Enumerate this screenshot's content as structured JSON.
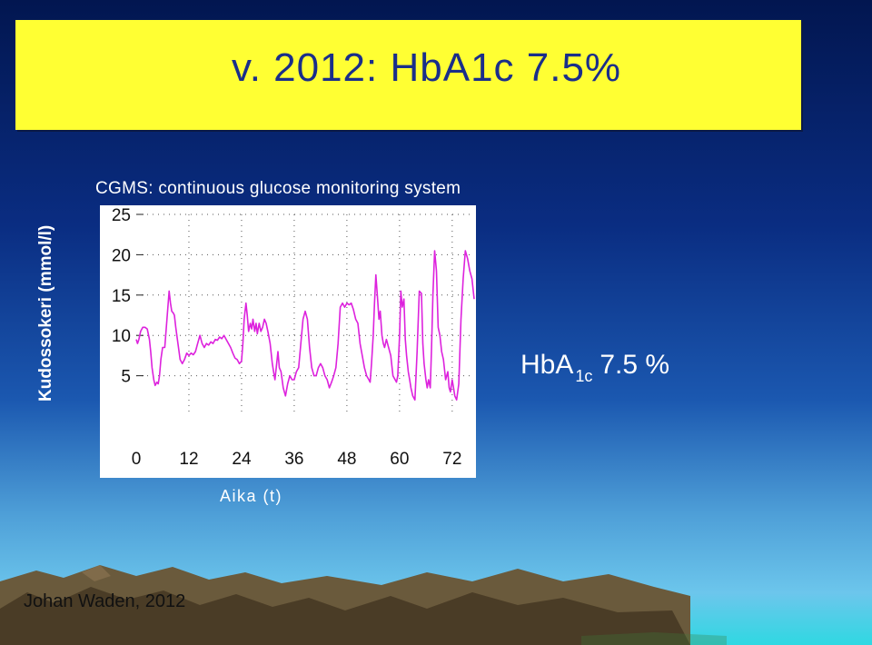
{
  "slide": {
    "title": "v. 2012: HbA1c 7.5%",
    "author": "Johan Waden, 2012",
    "hba1c_label_main": "HbA",
    "hba1c_label_sub": "1c",
    "hba1c_label_value": "7.5 %"
  },
  "colors": {
    "banner": "#ffff33",
    "title_text": "#1a2e8a",
    "series_line": "#dd22dd"
  },
  "chart_data": {
    "type": "line",
    "title": "CGMS: continuous glucose monitoring system",
    "xlabel": "Aika (t)",
    "ylabel": "Kudossokeri (mmol/l)",
    "x_ticks": [
      0,
      12,
      24,
      36,
      48,
      60,
      72
    ],
    "x_tick_labels": [
      "0",
      "12",
      "24",
      "36",
      "48",
      "60",
      "72"
    ],
    "y_ticks": [
      5,
      10,
      15,
      20,
      25
    ],
    "y_tick_labels": [
      "5",
      "10",
      "15",
      "20",
      "25"
    ],
    "xlim": [
      0,
      77
    ],
    "ylim": [
      0,
      25
    ],
    "grid": true,
    "series": [
      {
        "x": [
          0,
          0.3,
          0.6,
          1,
          1.5,
          2,
          2.5,
          3,
          3.3,
          3.6,
          4,
          4.3,
          4.7,
          5,
          5.3,
          5.6,
          6,
          6.5,
          7,
          7.5,
          7.8,
          8.1,
          8.4,
          8.7,
          9,
          9.5,
          10,
          10.5,
          11,
          11.5,
          12,
          12.5,
          13,
          13.5,
          14,
          14.5,
          15,
          15.5,
          16,
          16.5,
          17,
          17.5,
          18,
          18.5,
          19,
          19.5,
          20,
          20.5,
          21,
          21.5,
          22,
          22.5,
          23,
          23.5,
          24,
          24.3,
          24.6,
          25,
          25.3,
          25.6,
          26,
          26.3,
          26.6,
          27,
          27.3,
          27.6,
          28,
          28.4,
          28.8,
          29.2,
          29.6,
          30,
          30.5,
          31,
          31.3,
          31.6,
          32,
          32.3,
          32.6,
          33,
          33.5,
          34,
          34.5,
          35,
          35.5,
          36,
          36.5,
          37,
          37.5,
          38,
          38.5,
          39,
          39.5,
          40,
          40.5,
          41,
          41.5,
          42,
          42.5,
          43,
          43.5,
          44,
          44.5,
          45,
          45.5,
          46,
          46.5,
          47,
          47.5,
          48,
          48.5,
          49,
          49.5,
          50,
          50.5,
          51,
          51.5,
          52,
          52.5,
          53,
          53.3,
          53.6,
          54,
          54.3,
          54.6,
          55,
          55.3,
          55.6,
          56,
          56.3,
          56.6,
          57,
          57.5,
          58,
          58.5,
          59,
          59.3,
          59.6,
          60,
          60.3,
          60.6,
          61,
          61.3,
          61.6,
          62,
          62.3,
          62.6,
          63,
          63.5,
          64,
          64.5,
          65,
          65.3,
          65.6,
          66,
          66.3,
          66.6,
          67,
          67.3,
          67.6,
          68,
          68.4,
          68.8,
          69.2,
          69.6,
          70,
          70.5,
          71,
          71.3,
          71.6,
          72,
          72.3,
          72.6,
          73,
          73.5,
          74,
          74.5,
          75,
          75.5,
          76,
          76.5,
          77
        ],
        "values": [
          9.5,
          9,
          9.5,
          10.5,
          11,
          11,
          10.8,
          9.5,
          8,
          6,
          4.5,
          3.8,
          4.2,
          4,
          5,
          7,
          8.5,
          8.5,
          12,
          15.5,
          14,
          13,
          12.8,
          12.5,
          11,
          9,
          7,
          6.5,
          7,
          7.8,
          7.5,
          7.8,
          7.6,
          8,
          9,
          10,
          9,
          8.5,
          9,
          8.8,
          9.2,
          9,
          9.5,
          9.4,
          9.8,
          9.6,
          10,
          9.5,
          9,
          8.5,
          7.8,
          7.2,
          7,
          6.5,
          6.8,
          9,
          12,
          14,
          12.5,
          10.5,
          11.5,
          10.8,
          12,
          10.5,
          11.5,
          10.2,
          11.5,
          10.5,
          11,
          12,
          11.5,
          10.5,
          9,
          6.5,
          5.5,
          4.5,
          6.5,
          8,
          6,
          5.5,
          3.5,
          2.5,
          4,
          5,
          4.5,
          4.5,
          5.5,
          6,
          9,
          12,
          13,
          12,
          8.5,
          6,
          5,
          5,
          6,
          6.5,
          6,
          5,
          4.5,
          3.5,
          4.2,
          5,
          6,
          9,
          13.5,
          14,
          13.5,
          14,
          13.8,
          14,
          13.2,
          12,
          11.5,
          9,
          7.5,
          6,
          5,
          4.5,
          4.2,
          6.5,
          10,
          14,
          17.5,
          14.5,
          12,
          13,
          10,
          9,
          8.5,
          9.5,
          8.5,
          7.5,
          5,
          4.5,
          4.2,
          5,
          10,
          15.5,
          13.5,
          14.5,
          9.5,
          7.5,
          5.5,
          4.5,
          3.5,
          2.5,
          2,
          8,
          15.5,
          15.2,
          9,
          6.5,
          4.5,
          3.5,
          4.5,
          3.5,
          8.5,
          15,
          20.5,
          18,
          11,
          10,
          8,
          7,
          4.5,
          5.5,
          3.5,
          3,
          4.5,
          3.5,
          2.5,
          2,
          4,
          12,
          17,
          20.5,
          19.5,
          18,
          17,
          14.5
        ]
      }
    ]
  }
}
